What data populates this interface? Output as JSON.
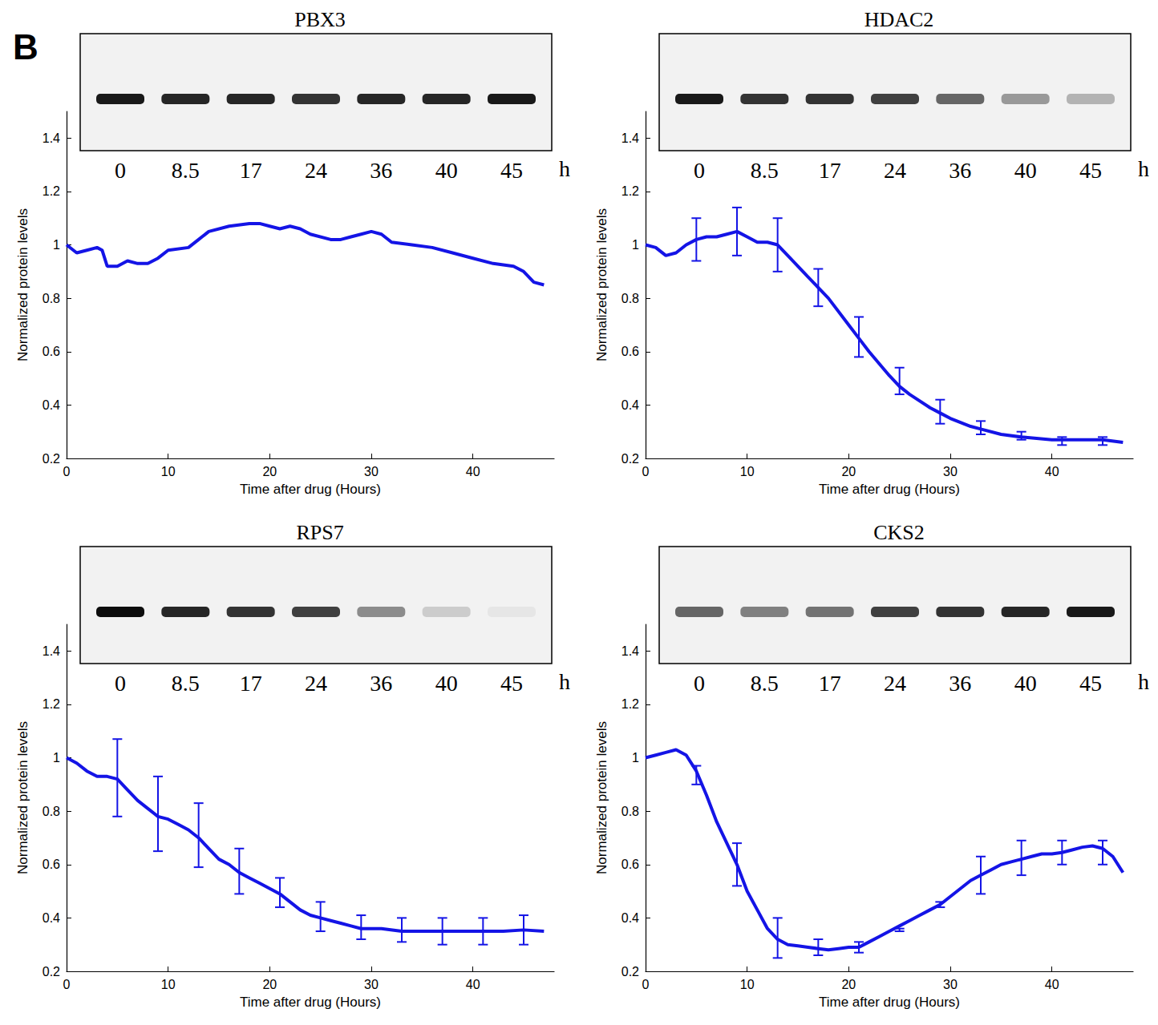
{
  "panel_label": "B",
  "chart_data": [
    {
      "type": "line",
      "title": "PBX3",
      "color": "#1414e6",
      "x_label": "Time after drug (Hours)",
      "y_label": "Normalized protein levels",
      "xlim": [
        0,
        48
      ],
      "xticks": [
        0,
        10,
        20,
        30,
        40
      ],
      "ylim": [
        0.2,
        1.5
      ],
      "yticks": [
        0.2,
        0.4,
        0.6,
        0.8,
        1,
        1.2,
        1.4
      ],
      "x": [
        0,
        1,
        2,
        3,
        3.5,
        4,
        5,
        6,
        7,
        8,
        9,
        10,
        12,
        13,
        14,
        16,
        18,
        19,
        20,
        21,
        22,
        23,
        24,
        26,
        27,
        28,
        29,
        30,
        31,
        32,
        34,
        36,
        38,
        40,
        42,
        44,
        45,
        46,
        47
      ],
      "values": [
        1.0,
        0.97,
        0.98,
        0.99,
        0.98,
        0.92,
        0.92,
        0.94,
        0.93,
        0.93,
        0.95,
        0.98,
        0.99,
        1.02,
        1.05,
        1.07,
        1.08,
        1.08,
        1.07,
        1.06,
        1.07,
        1.06,
        1.04,
        1.02,
        1.02,
        1.03,
        1.04,
        1.05,
        1.04,
        1.01,
        1.0,
        0.99,
        0.97,
        0.95,
        0.93,
        0.92,
        0.9,
        0.86,
        0.85
      ],
      "blot": {
        "lanes": [
          0,
          8.5,
          17,
          24,
          36,
          40,
          45
        ],
        "unit": "h",
        "band_intensity": [
          0.9,
          0.85,
          0.85,
          0.8,
          0.85,
          0.85,
          0.9
        ]
      }
    },
    {
      "type": "line",
      "title": "HDAC2",
      "color": "#1414e6",
      "x_label": "Time after drug (Hours)",
      "y_label": "Normalized protein levels",
      "xlim": [
        0,
        48
      ],
      "xticks": [
        0,
        10,
        20,
        30,
        40
      ],
      "ylim": [
        0.2,
        1.5
      ],
      "yticks": [
        0.2,
        0.4,
        0.6,
        0.8,
        1,
        1.2,
        1.4
      ],
      "x": [
        0,
        1,
        2,
        3,
        4,
        5,
        6,
        7,
        8,
        9,
        10,
        11,
        12,
        13,
        14,
        16,
        17,
        18,
        20,
        21,
        22,
        24,
        25,
        26,
        28,
        29,
        30,
        32,
        33,
        35,
        37,
        40,
        43,
        45,
        47
      ],
      "values": [
        1.0,
        0.99,
        0.96,
        0.97,
        1.0,
        1.02,
        1.03,
        1.03,
        1.04,
        1.05,
        1.03,
        1.01,
        1.01,
        1.0,
        0.96,
        0.88,
        0.84,
        0.8,
        0.7,
        0.65,
        0.6,
        0.51,
        0.47,
        0.44,
        0.39,
        0.37,
        0.35,
        0.32,
        0.31,
        0.29,
        0.28,
        0.27,
        0.27,
        0.27,
        0.26
      ],
      "errors": {
        "x": [
          5,
          9,
          13,
          17,
          21,
          25,
          29,
          33,
          37,
          41,
          45
        ],
        "low": [
          0.94,
          0.96,
          0.9,
          0.77,
          0.58,
          0.44,
          0.33,
          0.29,
          0.27,
          0.25,
          0.25
        ],
        "high": [
          1.1,
          1.14,
          1.1,
          0.91,
          0.73,
          0.54,
          0.42,
          0.34,
          0.3,
          0.28,
          0.28
        ]
      },
      "blot": {
        "lanes": [
          0,
          8.5,
          17,
          24,
          36,
          40,
          45
        ],
        "unit": "h",
        "band_intensity": [
          0.9,
          0.8,
          0.8,
          0.75,
          0.6,
          0.4,
          0.3
        ]
      }
    },
    {
      "type": "line",
      "title": "RPS7",
      "color": "#1414e6",
      "x_label": "Time after drug (Hours)",
      "y_label": "Normalized protein levels",
      "xlim": [
        0,
        48
      ],
      "xticks": [
        0,
        10,
        20,
        30,
        40
      ],
      "ylim": [
        0.2,
        1.5
      ],
      "yticks": [
        0.2,
        0.4,
        0.6,
        0.8,
        1,
        1.2,
        1.4
      ],
      "x": [
        0,
        1,
        2,
        3,
        4,
        5,
        6,
        7,
        8,
        9,
        10,
        11,
        12,
        13,
        14,
        15,
        16,
        17,
        18,
        19,
        20,
        21,
        22,
        23,
        24,
        25,
        26,
        27,
        28,
        29,
        31,
        33,
        35,
        37,
        39,
        41,
        43,
        45,
        47
      ],
      "values": [
        1.0,
        0.98,
        0.95,
        0.93,
        0.93,
        0.92,
        0.88,
        0.84,
        0.81,
        0.78,
        0.77,
        0.75,
        0.73,
        0.7,
        0.66,
        0.62,
        0.6,
        0.57,
        0.55,
        0.53,
        0.51,
        0.49,
        0.46,
        0.43,
        0.41,
        0.4,
        0.39,
        0.38,
        0.37,
        0.36,
        0.36,
        0.35,
        0.35,
        0.35,
        0.35,
        0.35,
        0.35,
        0.355,
        0.35
      ],
      "errors": {
        "x": [
          5,
          9,
          13,
          17,
          21,
          25,
          29,
          33,
          37,
          41,
          45
        ],
        "low": [
          0.78,
          0.65,
          0.59,
          0.49,
          0.44,
          0.35,
          0.32,
          0.31,
          0.3,
          0.3,
          0.3
        ],
        "high": [
          1.07,
          0.93,
          0.83,
          0.66,
          0.55,
          0.46,
          0.41,
          0.4,
          0.4,
          0.4,
          0.41
        ]
      },
      "blot": {
        "lanes": [
          0,
          8.5,
          17,
          24,
          36,
          40,
          45
        ],
        "unit": "h",
        "band_intensity": [
          0.95,
          0.85,
          0.8,
          0.75,
          0.45,
          0.2,
          0.1
        ]
      }
    },
    {
      "type": "line",
      "title": "CKS2",
      "color": "#1414e6",
      "x_label": "Time after drug (Hours)",
      "y_label": "Normalized protein levels",
      "xlim": [
        0,
        48
      ],
      "xticks": [
        0,
        10,
        20,
        30,
        40
      ],
      "ylim": [
        0.2,
        1.5
      ],
      "yticks": [
        0.2,
        0.4,
        0.6,
        0.8,
        1,
        1.2,
        1.4
      ],
      "x": [
        0,
        1,
        2,
        3,
        4,
        5,
        6,
        7,
        8,
        9,
        10,
        11,
        12,
        13,
        14,
        15,
        16,
        17,
        18,
        19,
        20,
        21,
        22,
        23,
        24,
        25,
        26,
        27,
        28,
        29,
        30,
        31,
        32,
        33,
        34,
        35,
        36,
        37,
        38,
        39,
        40,
        41,
        42,
        43,
        44,
        45,
        46,
        47
      ],
      "values": [
        1.0,
        1.01,
        1.02,
        1.03,
        1.01,
        0.95,
        0.86,
        0.76,
        0.68,
        0.6,
        0.5,
        0.43,
        0.36,
        0.32,
        0.3,
        0.295,
        0.29,
        0.285,
        0.28,
        0.285,
        0.29,
        0.29,
        0.31,
        0.33,
        0.35,
        0.37,
        0.39,
        0.41,
        0.43,
        0.45,
        0.48,
        0.51,
        0.54,
        0.56,
        0.58,
        0.6,
        0.61,
        0.62,
        0.63,
        0.64,
        0.64,
        0.645,
        0.655,
        0.665,
        0.67,
        0.66,
        0.63,
        0.57
      ],
      "errors": {
        "x": [
          5,
          9,
          13,
          17,
          21,
          25,
          29,
          33,
          37,
          41,
          45
        ],
        "low": [
          0.9,
          0.52,
          0.25,
          0.26,
          0.27,
          0.35,
          0.44,
          0.49,
          0.56,
          0.6,
          0.6
        ],
        "high": [
          0.97,
          0.68,
          0.4,
          0.32,
          0.31,
          0.36,
          0.46,
          0.63,
          0.69,
          0.69,
          0.69
        ]
      },
      "blot": {
        "lanes": [
          0,
          8.5,
          17,
          24,
          36,
          40,
          45
        ],
        "unit": "h",
        "band_intensity": [
          0.6,
          0.5,
          0.55,
          0.75,
          0.8,
          0.85,
          0.9
        ]
      }
    }
  ]
}
